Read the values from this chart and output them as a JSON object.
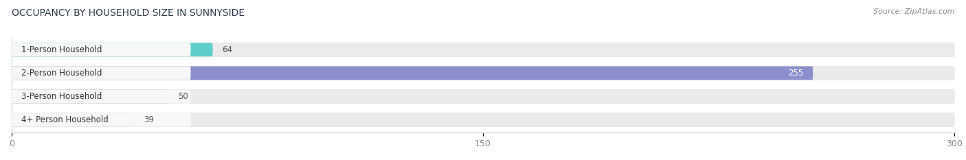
{
  "title": "OCCUPANCY BY HOUSEHOLD SIZE IN SUNNYSIDE",
  "source": "Source: ZipAtlas.com",
  "categories": [
    "1-Person Household",
    "2-Person Household",
    "3-Person Household",
    "4+ Person Household"
  ],
  "values": [
    64,
    255,
    50,
    39
  ],
  "bar_colors": [
    "#5ececa",
    "#8b8fcc",
    "#f0929e",
    "#f5c98a"
  ],
  "bg_color": "#ebebeb",
  "label_bg_color": "#f7f7f7",
  "xlim": [
    0,
    300
  ],
  "xticks": [
    0,
    150,
    300
  ],
  "background_color": "#ffffff",
  "title_color": "#2d3a4a",
  "source_color": "#888888",
  "tick_color": "#888888",
  "label_color": "#333333"
}
